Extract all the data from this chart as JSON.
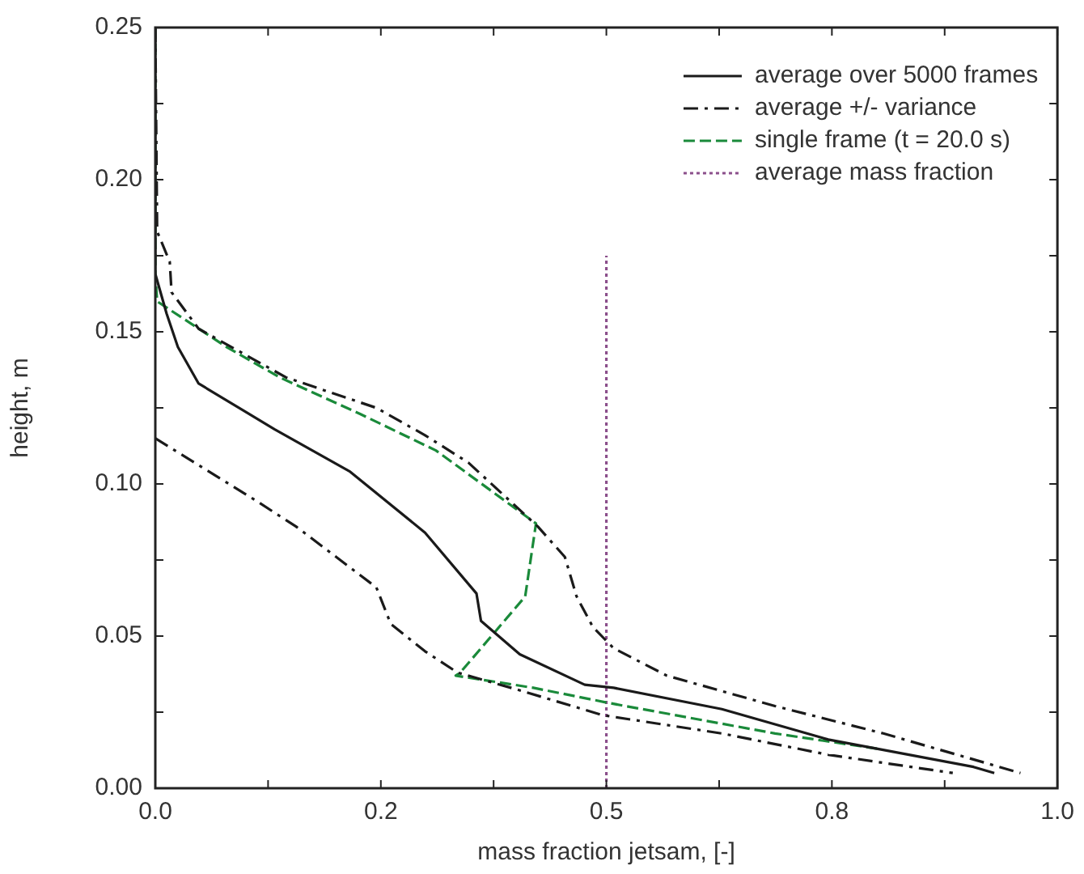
{
  "chart_data": {
    "type": "line",
    "xlabel": "mass fraction jetsam, [-]",
    "ylabel": "height, m",
    "xlim": [
      0,
      1
    ],
    "ylim": [
      0,
      0.25
    ],
    "xticks": [
      {
        "value": 0,
        "label": "0.0"
      },
      {
        "value": 0.125,
        "label": null
      },
      {
        "value": 0.25,
        "label": "0.2"
      },
      {
        "value": 0.375,
        "label": null
      },
      {
        "value": 0.5,
        "label": "0.5"
      },
      {
        "value": 0.625,
        "label": null
      },
      {
        "value": 0.75,
        "label": "0.8"
      },
      {
        "value": 0.875,
        "label": null
      },
      {
        "value": 1,
        "label": "1.0"
      }
    ],
    "yticks": [
      {
        "value": 0,
        "label": "0.00"
      },
      {
        "value": 0.025,
        "label": null
      },
      {
        "value": 0.05,
        "label": "0.05"
      },
      {
        "value": 0.075,
        "label": null
      },
      {
        "value": 0.1,
        "label": "0.10"
      },
      {
        "value": 0.125,
        "label": null
      },
      {
        "value": 0.15,
        "label": "0.15"
      },
      {
        "value": 0.175,
        "label": null
      },
      {
        "value": 0.2,
        "label": "0.20"
      },
      {
        "value": 0.225,
        "label": null
      },
      {
        "value": 0.25,
        "label": "0.25"
      }
    ],
    "legend": "top right",
    "marker": "none",
    "grid": false,
    "series": [
      {
        "name": "average over 5000 frames",
        "color": "#1a1a1a",
        "line_style": "solid",
        "x": [
          0,
          0,
          0.0125,
          0.025,
          0.048,
          0.132,
          0.216,
          0.299,
          0.356,
          0.361,
          0.404,
          0.476,
          0.508,
          0.628,
          0.746,
          0.907,
          0.93
        ],
        "values": [
          0.25,
          0.169,
          0.156,
          0.145,
          0.133,
          0.118,
          0.104,
          0.084,
          0.064,
          0.055,
          0.044,
          0.034,
          0.033,
          0.026,
          0.016,
          0.007,
          0.005
        ]
      },
      {
        "name": "average +/- variance",
        "color": "#1a1a1a",
        "line_style": "dashdot",
        "x": [
          0,
          0.002,
          0.016,
          0.018,
          0.048,
          0.145,
          0.245,
          0.299,
          0.347,
          0.424,
          0.454,
          0.467,
          0.485,
          0.508,
          0.567,
          0.687,
          0.807,
          0.959
        ],
        "values": [
          0.25,
          0.183,
          0.173,
          0.163,
          0.151,
          0.135,
          0.125,
          0.116,
          0.107,
          0.086,
          0.076,
          0.063,
          0.053,
          0.046,
          0.037,
          0.027,
          0.018,
          0.005
        ]
      },
      {
        "color": "#1a1a1a",
        "line_style": "dashdot",
        "x": [
          0,
          0.109,
          0.156,
          0.245,
          0.261,
          0.299,
          0.335,
          0.406,
          0.496,
          0.628,
          0.746,
          0.884
        ],
        "values": [
          0.115,
          0.095,
          0.086,
          0.066,
          0.054,
          0.045,
          0.038,
          0.032,
          0.024,
          0.018,
          0.011,
          0.005
        ]
      },
      {
        "name": "single frame (t = 20.0 s)",
        "color": "#1a8a3a",
        "line_style": "dashed",
        "x": [
          0,
          0,
          0.002,
          0.079,
          0.138,
          0.227,
          0.311,
          0.422,
          0.41,
          0.338,
          0.333,
          0.419,
          0.503,
          0.687,
          0.8
        ],
        "values": [
          0.25,
          0.169,
          0.16,
          0.145,
          0.135,
          0.123,
          0.111,
          0.087,
          0.063,
          0.038,
          0.037,
          0.033,
          0.028,
          0.018,
          0.013
        ]
      },
      {
        "name": "average mass fraction",
        "color": "#8b4f8b",
        "line_style": "dotted",
        "x": [
          0.5,
          0.5
        ],
        "values": [
          0,
          0.175
        ]
      }
    ]
  }
}
